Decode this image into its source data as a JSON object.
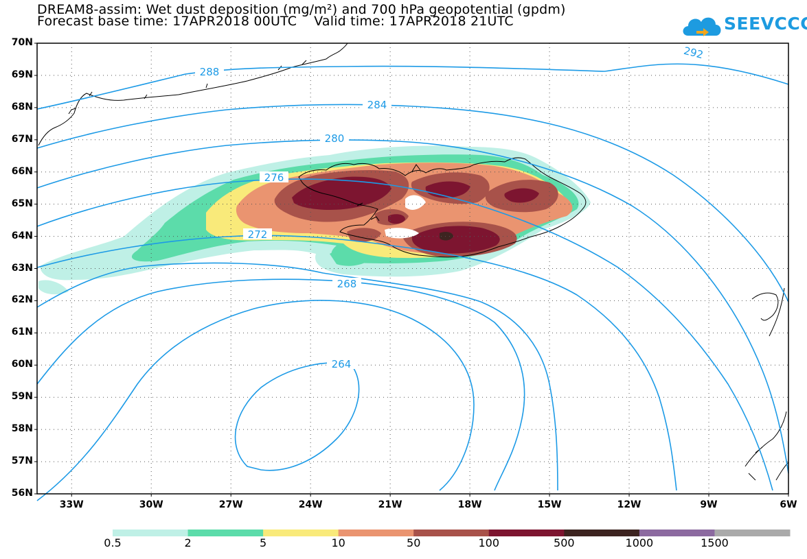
{
  "title": {
    "line1": "DREAM8-assim: Wet dust deposition (mg/m²) and 700 hPa geopotential (gpdm)",
    "line2": "Forecast base time: 17APR2018 00UTC    Valid time: 17APR2018 21UTC"
  },
  "logo": {
    "text": "SEEVCCC",
    "icon": "cloud-arrow-icon",
    "color": "#1d9be0"
  },
  "map": {
    "lat_labels": [
      "70N",
      "69N",
      "68N",
      "67N",
      "66N",
      "65N",
      "64N",
      "63N",
      "62N",
      "61N",
      "60N",
      "59N",
      "58N",
      "57N",
      "56N"
    ],
    "lon_labels": [
      "33W",
      "30W",
      "27W",
      "24W",
      "21W",
      "18W",
      "15W",
      "12W",
      "9W",
      "6W"
    ],
    "contour_labels": [
      "292",
      "288",
      "284",
      "280",
      "276",
      "272",
      "268",
      "264"
    ],
    "contour_color": "#1c9ae6",
    "coastline_color": "#000000"
  },
  "colorbar": {
    "labels": [
      "0.5",
      "2",
      "5",
      "10",
      "50",
      "100",
      "500",
      "1000",
      "1500"
    ],
    "colors": [
      "#bff0e6",
      "#5cdcaa",
      "#f9ea7a",
      "#ea9470",
      "#a8524a",
      "#7d1530",
      "#3d2420",
      "#8c6aa0",
      "#aaaaaa"
    ]
  }
}
